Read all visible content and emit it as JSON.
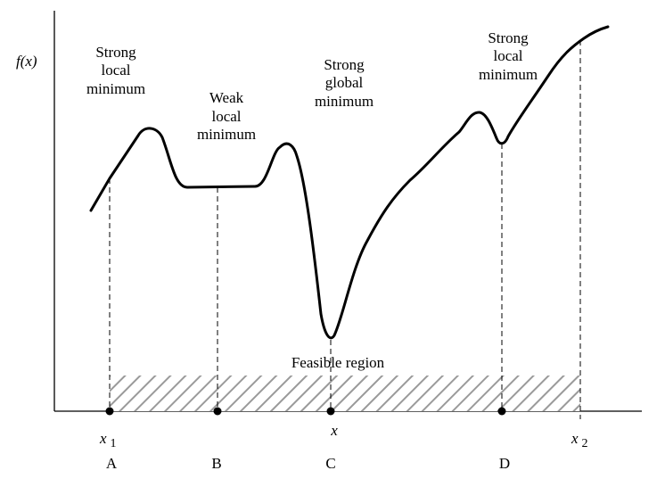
{
  "y_axis_label": "f(x)",
  "annotations": {
    "strong_local_1": [
      "Strong",
      "local",
      "minimum"
    ],
    "weak_local": [
      "Weak",
      "local",
      "minimum"
    ],
    "strong_global": [
      "Strong",
      "global",
      "minimum"
    ],
    "strong_local_2": [
      "Strong",
      "local",
      "minimum"
    ],
    "feasible_region": "Feasible region"
  },
  "x_labels": {
    "x1": "x",
    "x1_sub": "1",
    "x": "x",
    "x2": "x",
    "x2_sub": "2"
  },
  "point_labels": [
    "A",
    "B",
    "C",
    "D"
  ],
  "colors": {
    "curve": "#000000",
    "hatch": "#9a9a9a",
    "axis": "#000000"
  }
}
